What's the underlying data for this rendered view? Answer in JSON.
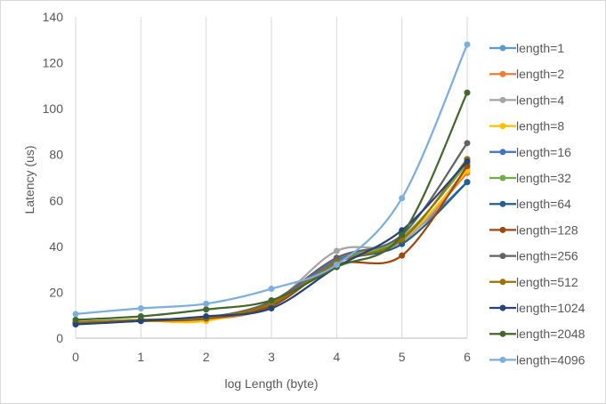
{
  "chart_data": {
    "type": "line",
    "title": "",
    "xlabel": "log Length (byte)",
    "ylabel": "Latency (us)",
    "x": [
      0,
      1,
      2,
      3,
      4,
      5,
      6
    ],
    "xlim": [
      0,
      6
    ],
    "ylim": [
      0,
      140
    ],
    "x_ticks": [
      0,
      1,
      2,
      3,
      4,
      5,
      6
    ],
    "y_ticks": [
      0,
      20,
      40,
      60,
      80,
      100,
      120,
      140
    ],
    "grid": "vertical",
    "legend_position": "right",
    "smooth": true,
    "series": [
      {
        "name": "length=1",
        "color": "#5b9bd5",
        "values": [
          6.5,
          7.5,
          8.5,
          14,
          35,
          43,
          68
        ]
      },
      {
        "name": "length=2",
        "color": "#ed7d31",
        "values": [
          6.5,
          7.5,
          8,
          14,
          35,
          42,
          72
        ]
      },
      {
        "name": "length=4",
        "color": "#a5a5a5",
        "values": [
          6.5,
          7.5,
          8,
          15,
          38,
          42,
          74
        ]
      },
      {
        "name": "length=8",
        "color": "#ffc000",
        "values": [
          6.5,
          7.5,
          7.5,
          16,
          34,
          43,
          73
        ]
      },
      {
        "name": "length=16",
        "color": "#4472c4",
        "values": [
          6.5,
          7.5,
          9,
          15,
          34,
          43,
          78
        ]
      },
      {
        "name": "length=32",
        "color": "#70ad47",
        "values": [
          7,
          8,
          9,
          14,
          33,
          44,
          76
        ]
      },
      {
        "name": "length=64",
        "color": "#255e91",
        "values": [
          6.5,
          7.5,
          9,
          14,
          33,
          41,
          68
        ]
      },
      {
        "name": "length=128",
        "color": "#9e480e",
        "values": [
          6.5,
          7.5,
          8.5,
          14,
          32,
          36,
          75
        ]
      },
      {
        "name": "length=256",
        "color": "#636363",
        "values": [
          6.5,
          8,
          9,
          16,
          35,
          45,
          85
        ]
      },
      {
        "name": "length=512",
        "color": "#997300",
        "values": [
          7,
          8,
          9,
          15,
          33,
          43,
          78
        ]
      },
      {
        "name": "length=1024",
        "color": "#264478",
        "values": [
          6,
          7.5,
          9.5,
          13,
          31,
          47,
          77
        ]
      },
      {
        "name": "length=2048",
        "color": "#43682b",
        "values": [
          8,
          9.5,
          12.5,
          16.5,
          31,
          45,
          107
        ]
      },
      {
        "name": "length=4096",
        "color": "#7cafdd",
        "values": [
          10.5,
          13,
          15,
          21.5,
          32,
          61,
          128
        ]
      }
    ]
  }
}
